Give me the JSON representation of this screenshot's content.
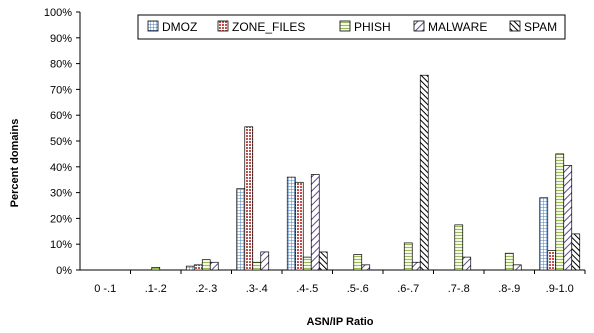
{
  "chart_data": {
    "type": "bar",
    "title": "",
    "xlabel": "ASN/IP Ratio",
    "ylabel": "Percent domains",
    "ylim": [
      0,
      100
    ],
    "y_ticks": [
      "0%",
      "10%",
      "20%",
      "30%",
      "40%",
      "50%",
      "60%",
      "70%",
      "80%",
      "90%",
      "100%"
    ],
    "y_tick_values": [
      0,
      10,
      20,
      30,
      40,
      50,
      60,
      70,
      80,
      90,
      100
    ],
    "categories": [
      "0 -.1",
      ".1-.2",
      ".2-.3",
      ".3-.4",
      ".4-.5",
      ".5-.6",
      ".6-.7",
      ".7-.8",
      ".8-.9",
      ".9-1.0"
    ],
    "grid": false,
    "legend_position": "top",
    "series": [
      {
        "name": "DMOZ",
        "pattern": "grid-blue",
        "values": [
          0,
          0,
          1.5,
          31.5,
          36,
          0,
          0,
          0,
          0,
          28
        ]
      },
      {
        "name": "ZONE_FILES",
        "pattern": "dots-red",
        "values": [
          0,
          0,
          2,
          55.5,
          34,
          0,
          0,
          0,
          0,
          7.5
        ]
      },
      {
        "name": "PHISH",
        "pattern": "hlines-green",
        "values": [
          0,
          1,
          4,
          3,
          5,
          6,
          10.5,
          17.5,
          6.5,
          45
        ]
      },
      {
        "name": "MALWARE",
        "pattern": "diag-purple",
        "values": [
          0,
          0,
          3,
          7,
          37,
          2,
          3,
          5,
          2,
          40.5
        ]
      },
      {
        "name": "SPAM",
        "pattern": "diag-black",
        "values": [
          0,
          0,
          0,
          0,
          7,
          0,
          75.5,
          0,
          0,
          14
        ]
      }
    ]
  }
}
